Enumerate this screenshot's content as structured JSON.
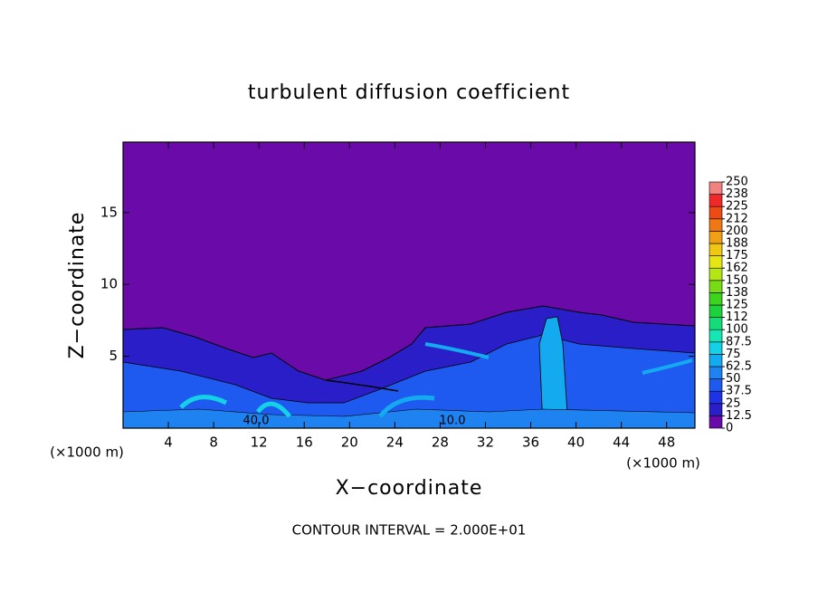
{
  "chart_data": {
    "type": "contour",
    "title": "turbulent diffusion coefficient",
    "x_label": "X−coordinate",
    "y_label": "Z−coordinate",
    "x_unit": "(×1000 m)",
    "y_unit": "(×1000 m)",
    "footer": "CONTOUR INTERVAL = 2.000E+01",
    "xlim": [
      0,
      50.5
    ],
    "xticks": [
      4,
      8,
      12,
      16,
      20,
      24,
      28,
      32,
      36,
      40,
      44,
      48
    ],
    "ylim": [
      0,
      19.9
    ],
    "yticks": [
      5,
      10,
      15
    ],
    "contour_labels": [
      "40.0",
      "10.0"
    ],
    "colorbar": {
      "levels": [
        0,
        12.5,
        25,
        37.5,
        50,
        62.5,
        75,
        87.5,
        100,
        {
          "value": 112.5,
          "label": "112"
        },
        125,
        {
          "value": 137.5,
          "label": "138"
        },
        150,
        {
          "value": 162.5,
          "label": "162"
        },
        175,
        {
          "value": 187.5,
          "label": "188"
        },
        200,
        {
          "value": 212.5,
          "label": "212"
        },
        225,
        {
          "value": 237.5,
          "label": "238"
        },
        250
      ],
      "colors": [
        "#6a0aa8",
        "#2a1ec8",
        "#1e32e6",
        "#1e5af0",
        "#1e82f0",
        "#14aaf0",
        "#14d2e6",
        "#14e6b4",
        "#14dc78",
        "#1ed23c",
        "#3cd21e",
        "#78dc14",
        "#b4e614",
        "#e6e614",
        "#f0c814",
        "#f0a014",
        "#f07814",
        "#f04a14",
        "#f02828",
        "#f08282"
      ]
    }
  }
}
